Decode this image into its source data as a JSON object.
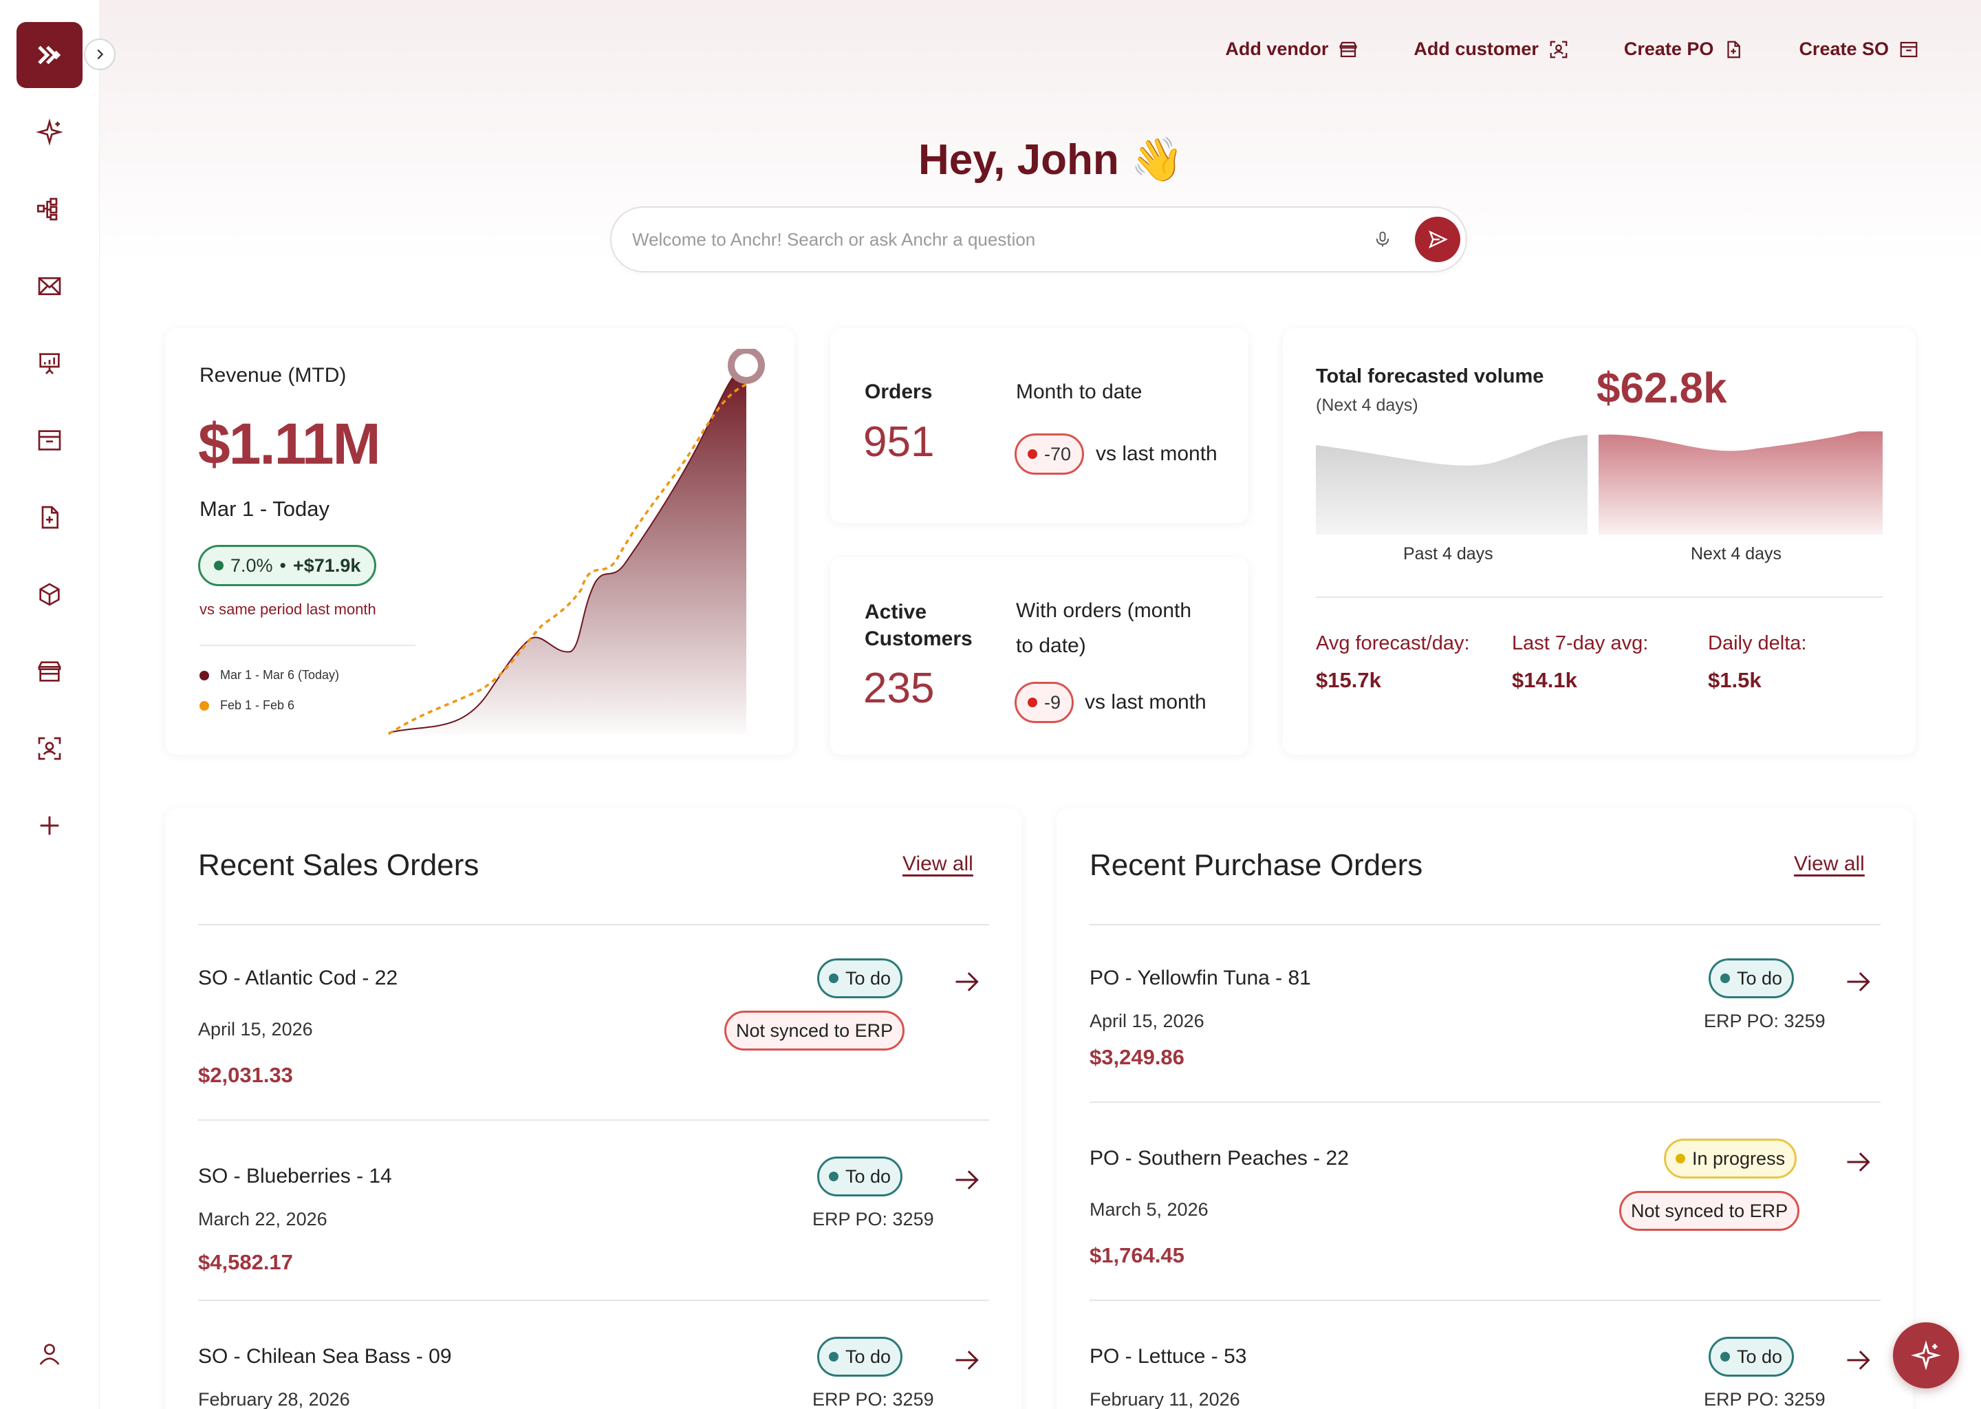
{
  "sidebar": {
    "icons": [
      "sparkle-icon",
      "workflow-icon",
      "mail-icon",
      "presentation-icon",
      "archive-box-icon",
      "file-plus-icon",
      "cube-icon",
      "store-icon",
      "user-scan-icon",
      "plus-icon"
    ],
    "profile_icon": "user-icon"
  },
  "header": {
    "actions": [
      {
        "label": "Add vendor",
        "icon": "store-icon"
      },
      {
        "label": "Add customer",
        "icon": "user-scan-icon"
      },
      {
        "label": "Create PO",
        "icon": "file-plus-icon"
      },
      {
        "label": "Create SO",
        "icon": "archive-box-icon"
      }
    ]
  },
  "greeting": "Hey, John 👋",
  "search": {
    "placeholder": "Welcome to Anchr! Search or ask Anchr a question"
  },
  "revenue": {
    "title": "Revenue (MTD)",
    "value": "$1.11M",
    "period": "Mar 1 - Today",
    "pct": "7.0%",
    "sep": "•",
    "delta": "+$71.9k",
    "compare": "vs same period last month",
    "legend": [
      {
        "label": "Mar 1 - Mar 6 (Today)",
        "color": "#6d1620"
      },
      {
        "label": "Feb 1 - Feb 6",
        "color": "#f0960f"
      }
    ]
  },
  "orders": {
    "label": "Orders",
    "value": "951",
    "period": "Month to date",
    "delta": "-70",
    "vs": "vs last month"
  },
  "customers": {
    "label": "Active Customers",
    "value": "235",
    "period": "With orders (month to date)",
    "delta": "-9",
    "vs": "vs last month"
  },
  "forecast": {
    "title": "Total forecasted volume",
    "subtitle": "(Next 4 days)",
    "value": "$62.8k",
    "past_label": "Past 4 days",
    "next_label": "Next 4 days",
    "stats": [
      {
        "label": "Avg forecast/day:",
        "value": "$15.7k"
      },
      {
        "label": "Last 7-day avg:",
        "value": "$14.1k"
      },
      {
        "label": "Daily delta:",
        "value": "$1.5k"
      }
    ]
  },
  "sales": {
    "title": "Recent Sales Orders",
    "view_all": "View all",
    "rows": [
      {
        "title": "SO - Atlantic Cod - 22",
        "date": "April 15, 2026",
        "amount": "$2,031.33",
        "status": "To do",
        "extra": "Not synced to ERP"
      },
      {
        "title": "SO - Blueberries - 14",
        "date": "March 22, 2026",
        "amount": "$4,582.17",
        "status": "To do",
        "extra": "ERP PO: 3259"
      },
      {
        "title": "SO - Chilean Sea Bass - 09",
        "date": "February 28, 2026",
        "amount": "",
        "status": "To do",
        "extra": "ERP PO: 3259"
      }
    ]
  },
  "purchases": {
    "title": "Recent Purchase Orders",
    "view_all": "View all",
    "rows": [
      {
        "title": "PO - Yellowfin Tuna - 81",
        "date": "April 15, 2026",
        "amount": "$3,249.86",
        "status": "To do",
        "extra": "ERP PO: 3259"
      },
      {
        "title": "PO - Southern Peaches - 22",
        "date": "March 5, 2026",
        "amount": "$1,764.45",
        "status": "In progress",
        "extra": "Not synced to ERP"
      },
      {
        "title": "PO - Lettuce - 53",
        "date": "February 11, 2026",
        "amount": "",
        "status": "To do",
        "extra": "ERP PO: 3259"
      }
    ]
  },
  "colors": {
    "brand": "#7b1a24",
    "accent": "#a0353f",
    "todo": "#2b7a78",
    "progress": "#e8c547",
    "warn": "#d9534f"
  }
}
